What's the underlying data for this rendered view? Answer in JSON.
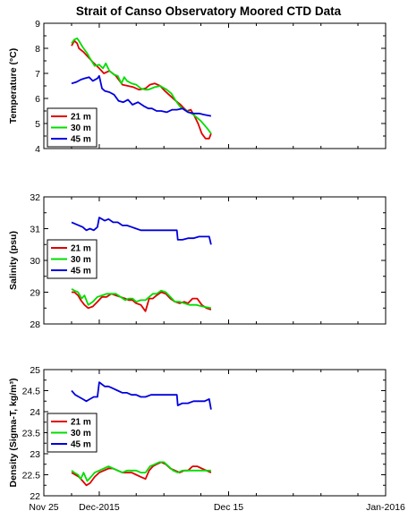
{
  "title": "Strait of Canso Observatory Moored CTD Data",
  "colors": {
    "21 m": "#e00000",
    "30 m": "#00dd00",
    "45 m": "#0000dd"
  },
  "chart_data": [
    {
      "type": "line",
      "ylabel": "Temperature (°C)",
      "ylim": [
        4,
        9
      ],
      "yticks": [
        "4",
        "5",
        "6",
        "7",
        "8",
        "9"
      ],
      "xlim": [
        "Nov 25",
        "Jan 1, 2016"
      ],
      "xticks": [
        "Nov 25",
        "Dec-2015",
        "Dec 15",
        "Jan-2016"
      ],
      "legend_position": "lower-left",
      "series": [
        {
          "name": "21 m",
          "x": [
            28.0,
            28.3,
            28.6,
            28.8,
            29.3,
            29.8,
            30.3,
            31.0,
            31.5,
            32.1,
            32.8,
            33.5,
            34.1,
            34.7,
            35.3,
            36.0,
            36.5,
            37.0,
            37.6,
            38.1,
            38.7,
            39.3,
            39.8,
            40.2,
            40.5,
            40.9,
            41.3,
            41.7,
            42.1,
            42.5,
            42.9,
            43.1
          ],
          "y": [
            8.1,
            8.3,
            8.2,
            8.0,
            7.85,
            7.65,
            7.45,
            7.2,
            7.0,
            7.1,
            6.9,
            6.55,
            6.5,
            6.45,
            6.35,
            6.4,
            6.55,
            6.6,
            6.5,
            6.3,
            6.1,
            5.9,
            5.75,
            5.6,
            5.5,
            5.55,
            5.3,
            5.0,
            4.6,
            4.4,
            4.4,
            4.6
          ]
        },
        {
          "name": "30 m",
          "x": [
            28.0,
            28.3,
            28.6,
            28.8,
            29.2,
            29.7,
            30.0,
            30.5,
            31.0,
            31.4,
            31.7,
            32.1,
            32.6,
            33.0,
            33.4,
            33.7,
            34.0,
            34.5,
            35.0,
            35.5,
            36.0,
            36.3,
            37.0,
            37.6,
            38.3,
            38.8,
            39.3,
            39.8,
            40.5,
            41.2,
            42.0,
            42.7,
            43.1
          ],
          "y": [
            8.2,
            8.35,
            8.4,
            8.3,
            8.05,
            7.8,
            7.6,
            7.3,
            7.35,
            7.2,
            7.4,
            7.1,
            6.95,
            6.9,
            6.6,
            6.85,
            6.7,
            6.6,
            6.55,
            6.4,
            6.35,
            6.35,
            6.45,
            6.5,
            6.35,
            6.2,
            5.9,
            5.65,
            5.5,
            5.35,
            5.1,
            4.8,
            4.6
          ]
        },
        {
          "name": "45 m",
          "x": [
            28.0,
            28.5,
            29.0,
            29.4,
            29.9,
            30.3,
            30.8,
            31.0,
            31.3,
            31.6,
            32.1,
            32.6,
            33.1,
            33.6,
            34.1,
            34.6,
            35.2,
            35.8,
            36.3,
            36.7,
            37.2,
            37.7,
            38.3,
            38.9,
            39.4,
            40.0,
            40.6,
            41.2,
            41.8,
            42.4,
            43.1
          ],
          "y": [
            6.6,
            6.65,
            6.75,
            6.8,
            6.85,
            6.7,
            6.8,
            6.9,
            6.4,
            6.3,
            6.25,
            6.15,
            5.9,
            5.85,
            5.95,
            5.75,
            5.85,
            5.7,
            5.6,
            5.6,
            5.5,
            5.5,
            5.45,
            5.55,
            5.55,
            5.6,
            5.45,
            5.4,
            5.4,
            5.35,
            5.3
          ]
        }
      ]
    },
    {
      "type": "line",
      "ylabel": "Salinity (psu)",
      "ylim": [
        28,
        32
      ],
      "yticks": [
        "28",
        "29",
        "30",
        "31",
        "32"
      ],
      "xlim": [
        "Nov 25",
        "Jan 1, 2016"
      ],
      "xticks": [
        "Nov 25",
        "Dec-2015",
        "Dec 15",
        "Jan-2016"
      ],
      "legend_position": "center-left",
      "series": [
        {
          "name": "21 m",
          "x": [
            28.0,
            28.3,
            28.7,
            29.0,
            29.4,
            29.8,
            30.3,
            30.8,
            31.3,
            31.8,
            32.3,
            32.8,
            33.3,
            33.8,
            34.2,
            34.6,
            35.0,
            35.5,
            36.0,
            36.4,
            36.8,
            37.2,
            37.7,
            38.2,
            38.7,
            39.2,
            39.7,
            40.2,
            40.6,
            41.1,
            41.6,
            42.1,
            42.6,
            43.1
          ],
          "y": [
            29.0,
            29.0,
            28.9,
            28.75,
            28.6,
            28.5,
            28.55,
            28.7,
            28.85,
            28.85,
            28.95,
            28.9,
            28.85,
            28.8,
            28.75,
            28.75,
            28.65,
            28.6,
            28.4,
            28.8,
            28.8,
            28.9,
            29.0,
            28.95,
            28.8,
            28.7,
            28.65,
            28.7,
            28.65,
            28.8,
            28.8,
            28.6,
            28.5,
            28.45
          ]
        },
        {
          "name": "30 m",
          "x": [
            28.0,
            28.3,
            28.7,
            29.1,
            29.4,
            29.8,
            30.3,
            30.8,
            31.3,
            31.8,
            32.3,
            32.8,
            33.3,
            33.8,
            34.2,
            34.6,
            35.0,
            35.5,
            36.0,
            36.4,
            36.8,
            37.2,
            37.7,
            38.2,
            38.7,
            39.2,
            39.7,
            40.2,
            40.8,
            41.5,
            42.2,
            43.1
          ],
          "y": [
            29.1,
            29.05,
            29.0,
            28.8,
            28.9,
            28.6,
            28.7,
            28.85,
            28.9,
            28.95,
            28.95,
            28.95,
            28.85,
            28.75,
            28.8,
            28.8,
            28.7,
            28.75,
            28.75,
            28.85,
            28.95,
            28.95,
            29.05,
            29.0,
            28.85,
            28.7,
            28.7,
            28.65,
            28.6,
            28.6,
            28.55,
            28.5
          ]
        },
        {
          "name": "45 m",
          "x": [
            28.0,
            28.4,
            28.8,
            29.2,
            29.6,
            30.0,
            30.4,
            30.8,
            31.0,
            31.3,
            31.6,
            32.0,
            32.5,
            33.0,
            33.5,
            34.0,
            34.5,
            35.0,
            35.5,
            36.0,
            36.6,
            37.2,
            37.8,
            38.4,
            39.0,
            39.4,
            39.5,
            40.0,
            40.6,
            41.2,
            41.8,
            42.4,
            42.9,
            43.1
          ],
          "y": [
            31.2,
            31.15,
            31.1,
            31.05,
            30.95,
            31.0,
            30.95,
            31.05,
            31.35,
            31.3,
            31.25,
            31.3,
            31.2,
            31.2,
            31.1,
            31.1,
            31.05,
            31.0,
            30.95,
            30.95,
            30.95,
            30.95,
            30.95,
            30.95,
            30.95,
            30.95,
            30.65,
            30.65,
            30.7,
            30.7,
            30.75,
            30.75,
            30.75,
            30.5
          ]
        }
      ]
    },
    {
      "type": "line",
      "ylabel": "Density (Sigma-T, kg/m³)",
      "ylim": [
        22,
        25
      ],
      "yticks": [
        "22",
        "22.5",
        "23",
        "23.5",
        "24",
        "24.5",
        "25"
      ],
      "xlim": [
        "Nov 25",
        "Jan 1, 2016"
      ],
      "xticks": [
        "Nov 25",
        "Dec-2015",
        "Dec 15",
        "Jan-2016"
      ],
      "legend_position": "center-left",
      "series": [
        {
          "name": "21 m",
          "x": [
            28.0,
            28.4,
            28.8,
            29.2,
            29.6,
            30.0,
            30.5,
            31.0,
            31.5,
            32.0,
            32.5,
            33.0,
            33.5,
            34.0,
            34.5,
            35.0,
            35.5,
            36.0,
            36.4,
            36.8,
            37.2,
            37.7,
            38.2,
            38.7,
            39.2,
            39.7,
            40.2,
            40.6,
            41.1,
            41.6,
            42.1,
            42.6,
            43.1
          ],
          "y": [
            22.55,
            22.5,
            22.45,
            22.35,
            22.25,
            22.3,
            22.45,
            22.55,
            22.6,
            22.65,
            22.65,
            22.6,
            22.55,
            22.55,
            22.55,
            22.5,
            22.45,
            22.4,
            22.6,
            22.7,
            22.75,
            22.8,
            22.75,
            22.65,
            22.6,
            22.55,
            22.6,
            22.6,
            22.7,
            22.7,
            22.65,
            22.6,
            22.55
          ]
        },
        {
          "name": "30 m",
          "x": [
            28.0,
            28.3,
            28.7,
            29.0,
            29.3,
            29.7,
            30.1,
            30.5,
            31.0,
            31.5,
            32.0,
            32.5,
            33.0,
            33.5,
            34.0,
            34.5,
            35.0,
            35.5,
            36.0,
            36.5,
            37.0,
            37.5,
            38.0,
            38.5,
            39.0,
            39.5,
            40.0,
            40.5,
            41.2,
            42.0,
            42.8,
            43.1
          ],
          "y": [
            22.6,
            22.55,
            22.5,
            22.4,
            22.55,
            22.35,
            22.45,
            22.55,
            22.6,
            22.65,
            22.7,
            22.65,
            22.6,
            22.55,
            22.6,
            22.6,
            22.6,
            22.55,
            22.55,
            22.7,
            22.75,
            22.8,
            22.8,
            22.7,
            22.6,
            22.55,
            22.6,
            22.6,
            22.6,
            22.6,
            22.6,
            22.6
          ]
        },
        {
          "name": "45 m",
          "x": [
            28.0,
            28.4,
            28.8,
            29.2,
            29.6,
            30.0,
            30.4,
            30.8,
            31.0,
            31.3,
            31.6,
            32.0,
            32.5,
            33.0,
            33.5,
            34.0,
            34.5,
            35.0,
            35.5,
            36.0,
            36.6,
            37.2,
            37.8,
            38.4,
            39.0,
            39.4,
            39.5,
            40.0,
            40.6,
            41.2,
            41.8,
            42.4,
            42.9,
            43.1
          ],
          "y": [
            24.5,
            24.4,
            24.35,
            24.3,
            24.25,
            24.3,
            24.35,
            24.35,
            24.7,
            24.65,
            24.6,
            24.6,
            24.55,
            24.5,
            24.45,
            24.45,
            24.4,
            24.4,
            24.35,
            24.35,
            24.4,
            24.4,
            24.4,
            24.4,
            24.4,
            24.4,
            24.15,
            24.2,
            24.2,
            24.25,
            24.25,
            24.25,
            24.3,
            24.05
          ]
        }
      ]
    }
  ]
}
